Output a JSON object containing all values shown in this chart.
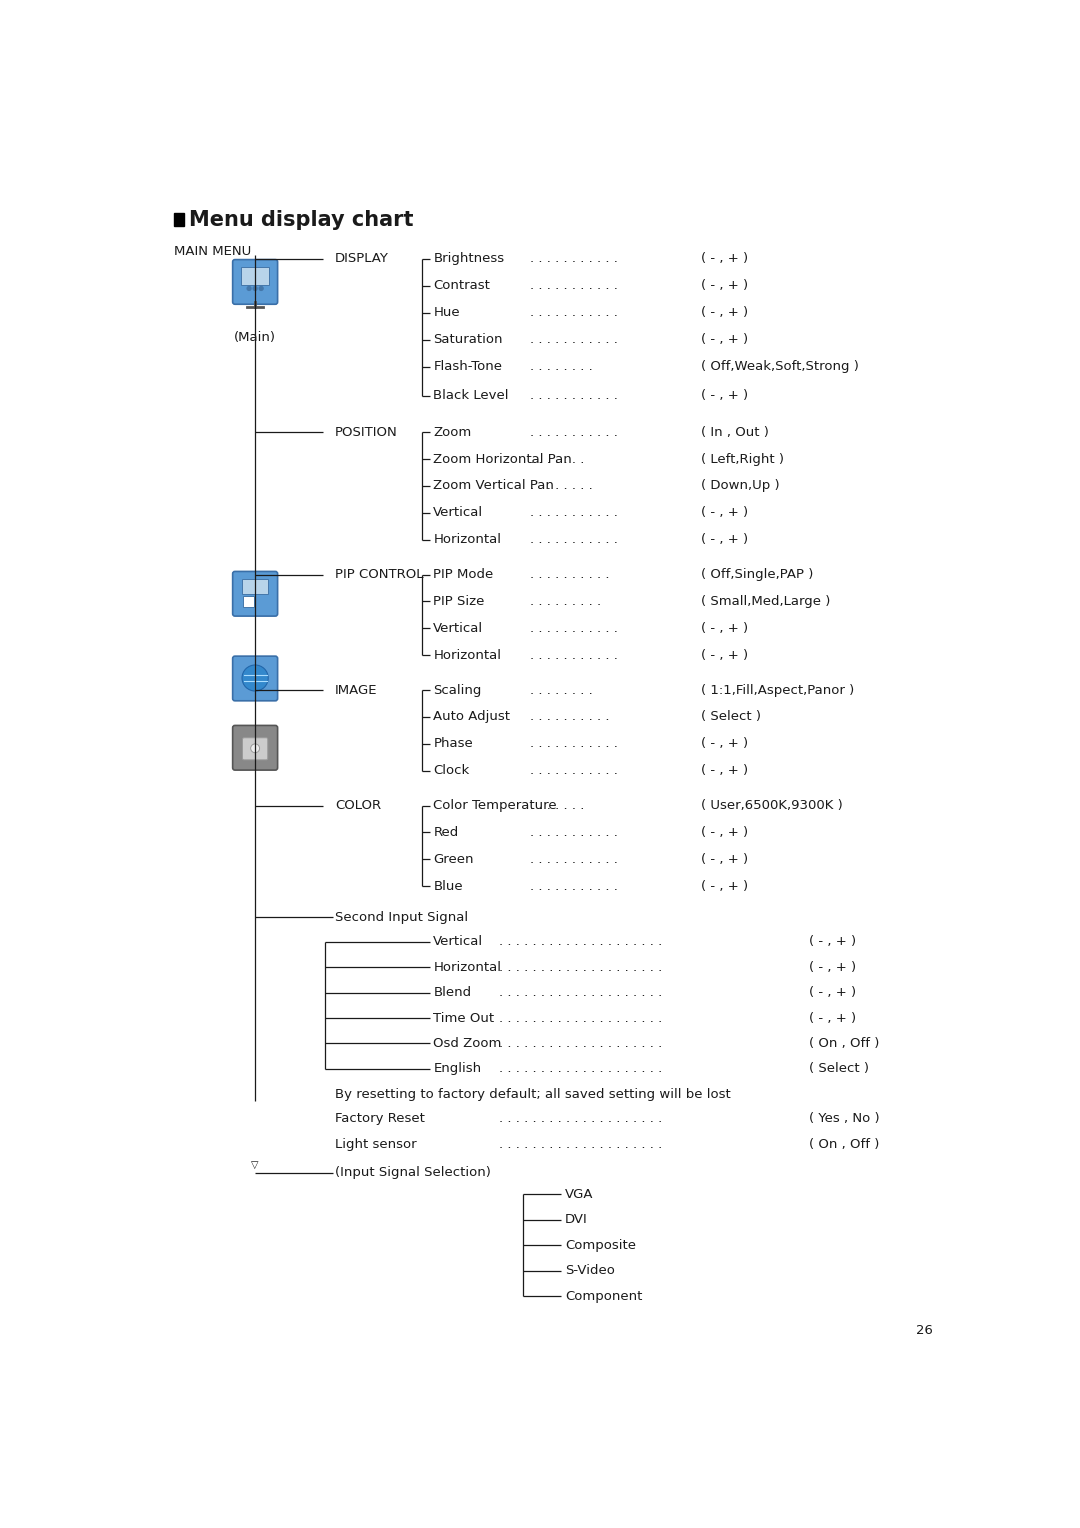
{
  "title": "Menu display chart",
  "bg_color": "#ffffff",
  "text_color": "#1a1a1a",
  "line_color": "#1a1a1a",
  "font_size": 9.5,
  "title_font_size": 15,
  "label_font_size": 9.5,
  "page_number": "26",
  "main_menu_label": "MAIN MENU",
  "main_label": "(Main)",
  "display_items": [
    {
      "label": "Brightness",
      "dots": ". . . . . . . . . . .",
      "value": "( - , + )"
    },
    {
      "label": "Contrast",
      "dots": ". . . . . . . . . . .",
      "value": "( - , + )"
    },
    {
      "label": "Hue",
      "dots": ". . . . . . . . . . .",
      "value": "( - , + )"
    },
    {
      "label": "Saturation",
      "dots": ". . . . . . . . . . .",
      "value": "( - , + )"
    },
    {
      "label": "Flash-Tone",
      "dots": ". . . . . . . .",
      "value": "( Off,Weak,Soft,Strong )"
    },
    {
      "label": "Black Level",
      "dots": ". . . . . . . . . . .",
      "value": "( - , + )"
    }
  ],
  "position_items": [
    {
      "label": "Zoom",
      "dots": ". . . . . . . . . . .",
      "value": "( In , Out )"
    },
    {
      "label": "Zoom Horizontal Pan",
      "dots": ". . . . . . .",
      "value": "( Left,Right )"
    },
    {
      "label": "Zoom Vertical Pan",
      "dots": ". . . . . . . .",
      "value": "( Down,Up )"
    },
    {
      "label": "Vertical",
      "dots": ". . . . . . . . . . .",
      "value": "( - , + )"
    },
    {
      "label": "Horizontal",
      "dots": ". . . . . . . . . . .",
      "value": "( - , + )"
    }
  ],
  "pip_items": [
    {
      "label": "PIP Mode",
      "dots": ". . . . . . . . . .",
      "value": "( Off,Single,PAP )"
    },
    {
      "label": "PIP Size",
      "dots": ". . . . . . . . .",
      "value": "( Small,Med,Large )"
    },
    {
      "label": "Vertical",
      "dots": ". . . . . . . . . . .",
      "value": "( - , + )"
    },
    {
      "label": "Horizontal",
      "dots": ". . . . . . . . . . .",
      "value": "( - , + )"
    }
  ],
  "image_items": [
    {
      "label": "Scaling",
      "dots": ". . . . . . . .",
      "value": "( 1:1,Fill,Aspect,Panor )"
    },
    {
      "label": "Auto Adjust",
      "dots": ". . . . . . . . . .",
      "value": "( Select )"
    },
    {
      "label": "Phase",
      "dots": ". . . . . . . . . . .",
      "value": "( - , + )"
    },
    {
      "label": "Clock",
      "dots": ". . . . . . . . . . .",
      "value": "( - , + )"
    }
  ],
  "color_items": [
    {
      "label": "Color Temperature",
      "dots": ". . . . . . .",
      "value": "( User,6500K,9300K )"
    },
    {
      "label": "Red",
      "dots": ". . . . . . . . . . .",
      "value": "( - , + )"
    },
    {
      "label": "Green",
      "dots": ". . . . . . . . . . .",
      "value": "( - , + )"
    },
    {
      "label": "Blue",
      "dots": ". . . . . . . . . . .",
      "value": "( - , + )"
    }
  ],
  "second_signal_label": "Second Input Signal",
  "pip_section_items": [
    {
      "label": "Vertical",
      "dots": ". . . . . . . . . . . . . . . . . . . .",
      "value": "( - , + )"
    },
    {
      "label": "Horizontal",
      "dots": ". . . . . . . . . . . . . . . . . . . .",
      "value": "( - , + )"
    },
    {
      "label": "Blend",
      "dots": ". . . . . . . . . . . . . . . . . . . .",
      "value": "( - , + )"
    },
    {
      "label": "Time Out",
      "dots": ". . . . . . . . . . . . . . . . . . . .",
      "value": "( - , + )"
    },
    {
      "label": "Osd Zoom",
      "dots": ". . . . . . . . . . . . . . . . . . . .",
      "value": "( On , Off )"
    },
    {
      "label": "English",
      "dots": ". . . . . . . . . . . . . . . . . . . .",
      "value": "( Select )"
    }
  ],
  "reset_note": "By resetting to factory default; all saved setting will be lost",
  "reset_items": [
    {
      "label": "Factory Reset",
      "dots": ". . . . . . . . . . . . . . . . . . . .",
      "value": "( Yes , No )"
    },
    {
      "label": "Light sensor",
      "dots": ". . . . . . . . . . . . . . . . . . . .",
      "value": "( On , Off )"
    }
  ],
  "input_label": "(Input Signal Selection)",
  "input_items": [
    "VGA",
    "DVI",
    "Composite",
    "S-Video",
    "Component"
  ]
}
